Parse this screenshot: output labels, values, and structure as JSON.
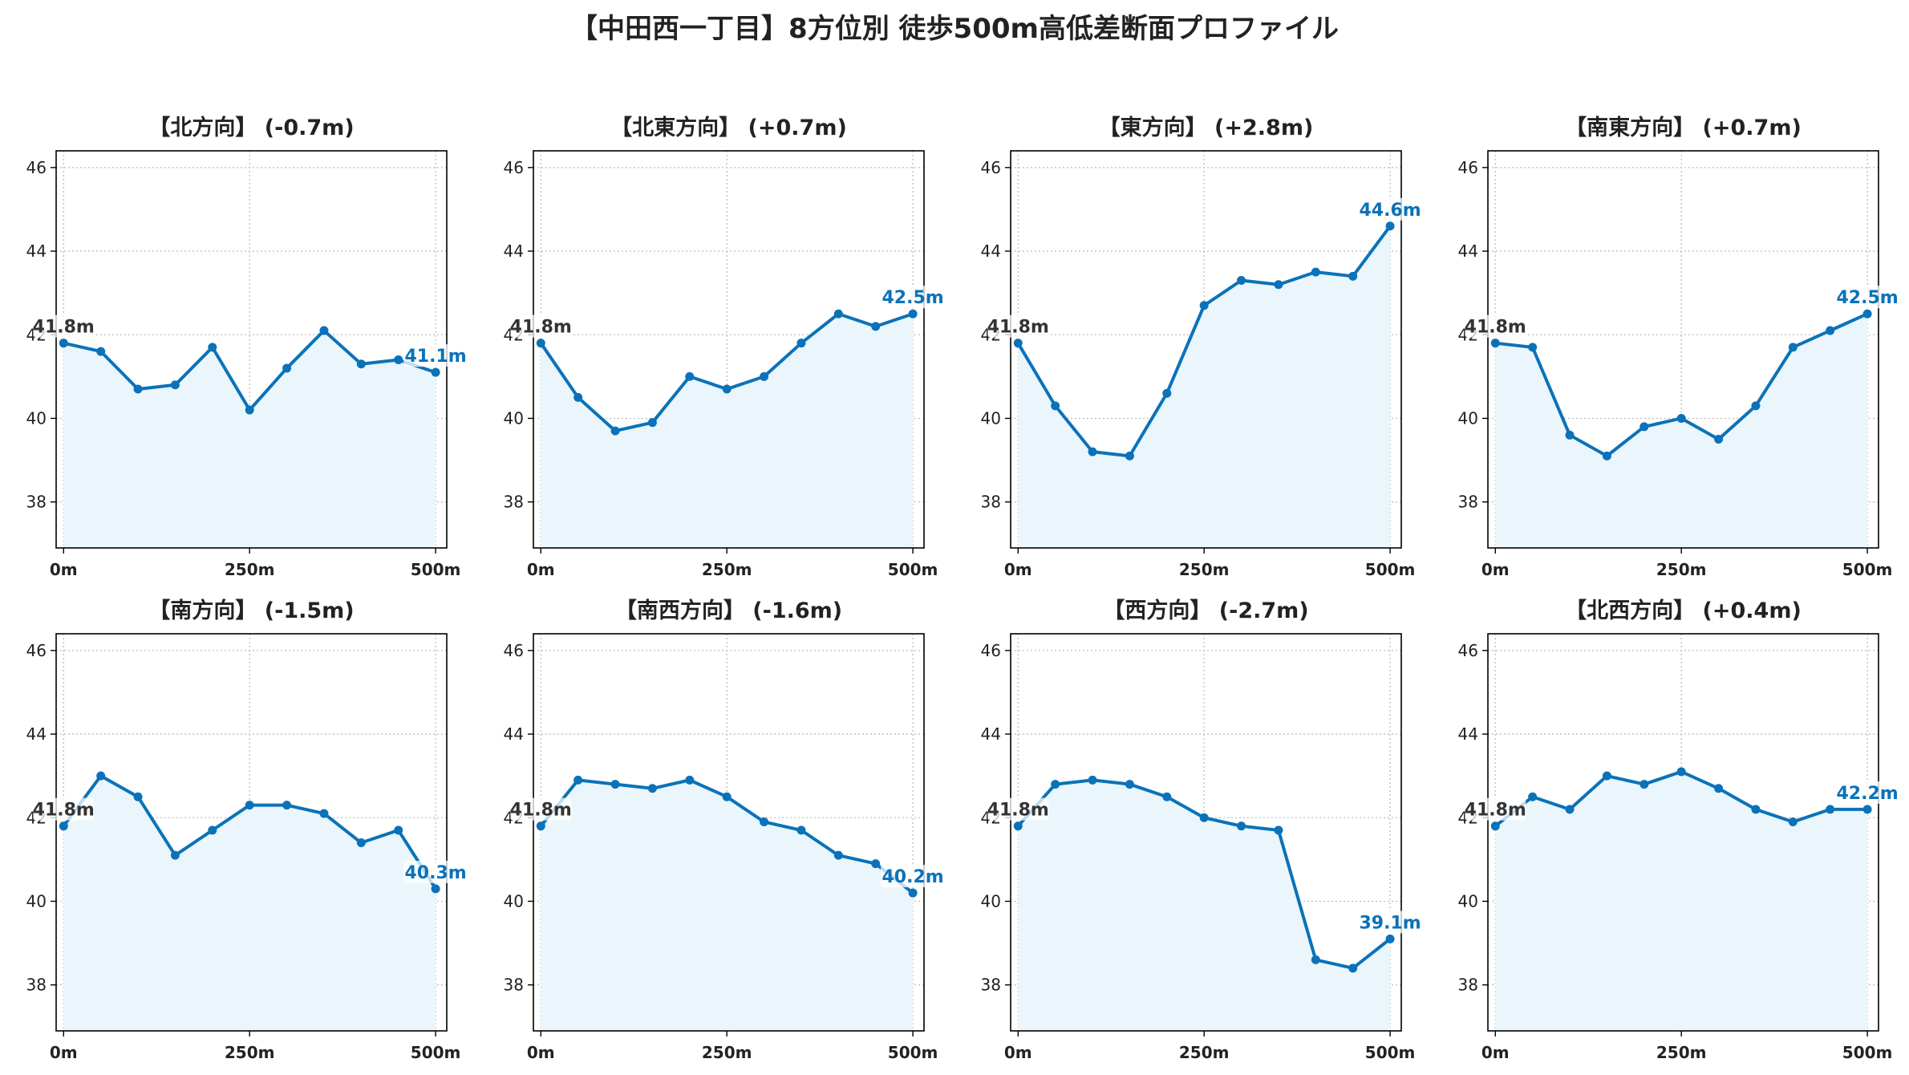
{
  "title": "【中田西一丁目】8方位別 徒歩500m高低差断面プロファイル",
  "style": {
    "line_color": "#0b72b9",
    "fill_color": "#eaf6fc",
    "start_label_color": "#333333",
    "end_label_color": "#0b72b9",
    "grid_color": "#bdbdbd"
  },
  "chart_data": [
    {
      "type": "line",
      "title": "【北方向】 (-0.7m)",
      "x": [
        0,
        50,
        100,
        150,
        200,
        250,
        300,
        350,
        400,
        450,
        500
      ],
      "values": [
        41.8,
        41.6,
        40.7,
        40.8,
        41.7,
        40.2,
        41.2,
        42.1,
        41.3,
        41.4,
        41.1
      ],
      "start_label": "41.8m",
      "end_label": "41.1m",
      "xticks": [
        "0m",
        "250m",
        "500m"
      ],
      "yticks": [
        38,
        40,
        42,
        44,
        46
      ],
      "ylim": [
        36.9,
        46.4
      ],
      "grid": true
    },
    {
      "type": "line",
      "title": "【北東方向】 (+0.7m)",
      "x": [
        0,
        50,
        100,
        150,
        200,
        250,
        300,
        350,
        400,
        450,
        500
      ],
      "values": [
        41.8,
        40.5,
        39.7,
        39.9,
        41.0,
        40.7,
        41.0,
        41.8,
        42.5,
        42.2,
        42.5
      ],
      "start_label": "41.8m",
      "end_label": "42.5m",
      "xticks": [
        "0m",
        "250m",
        "500m"
      ],
      "yticks": [
        38,
        40,
        42,
        44,
        46
      ],
      "ylim": [
        36.9,
        46.4
      ],
      "grid": true
    },
    {
      "type": "line",
      "title": "【東方向】 (+2.8m)",
      "x": [
        0,
        50,
        100,
        150,
        200,
        250,
        300,
        350,
        400,
        450,
        500
      ],
      "values": [
        41.8,
        40.3,
        39.2,
        39.1,
        40.6,
        42.7,
        43.3,
        43.2,
        43.5,
        43.4,
        44.6
      ],
      "start_label": "41.8m",
      "end_label": "44.6m",
      "xticks": [
        "0m",
        "250m",
        "500m"
      ],
      "yticks": [
        38,
        40,
        42,
        44,
        46
      ],
      "ylim": [
        36.9,
        46.4
      ],
      "grid": true
    },
    {
      "type": "line",
      "title": "【南東方向】 (+0.7m)",
      "x": [
        0,
        50,
        100,
        150,
        200,
        250,
        300,
        350,
        400,
        450,
        500
      ],
      "values": [
        41.8,
        41.7,
        39.6,
        39.1,
        39.8,
        40.0,
        39.5,
        40.3,
        41.7,
        42.1,
        42.5
      ],
      "start_label": "41.8m",
      "end_label": "42.5m",
      "xticks": [
        "0m",
        "250m",
        "500m"
      ],
      "yticks": [
        38,
        40,
        42,
        44,
        46
      ],
      "ylim": [
        36.9,
        46.4
      ],
      "grid": true
    },
    {
      "type": "line",
      "title": "【南方向】 (-1.5m)",
      "x": [
        0,
        50,
        100,
        150,
        200,
        250,
        300,
        350,
        400,
        450,
        500
      ],
      "values": [
        41.8,
        43.0,
        42.5,
        41.1,
        41.7,
        42.3,
        42.3,
        42.1,
        41.4,
        41.7,
        40.3
      ],
      "start_label": "41.8m",
      "end_label": "40.3m",
      "xticks": [
        "0m",
        "250m",
        "500m"
      ],
      "yticks": [
        38,
        40,
        42,
        44,
        46
      ],
      "ylim": [
        36.9,
        46.4
      ],
      "grid": true
    },
    {
      "type": "line",
      "title": "【南西方向】 (-1.6m)",
      "x": [
        0,
        50,
        100,
        150,
        200,
        250,
        300,
        350,
        400,
        450,
        500
      ],
      "values": [
        41.8,
        42.9,
        42.8,
        42.7,
        42.9,
        42.5,
        41.9,
        41.7,
        41.1,
        40.9,
        40.2
      ],
      "start_label": "41.8m",
      "end_label": "40.2m",
      "xticks": [
        "0m",
        "250m",
        "500m"
      ],
      "yticks": [
        38,
        40,
        42,
        44,
        46
      ],
      "ylim": [
        36.9,
        46.4
      ],
      "grid": true
    },
    {
      "type": "line",
      "title": "【西方向】 (-2.7m)",
      "x": [
        0,
        50,
        100,
        150,
        200,
        250,
        300,
        350,
        400,
        450,
        500
      ],
      "values": [
        41.8,
        42.8,
        42.9,
        42.8,
        42.5,
        42.0,
        41.8,
        41.7,
        38.6,
        38.4,
        39.1
      ],
      "start_label": "41.8m",
      "end_label": "39.1m",
      "xticks": [
        "0m",
        "250m",
        "500m"
      ],
      "yticks": [
        38,
        40,
        42,
        44,
        46
      ],
      "ylim": [
        36.9,
        46.4
      ],
      "grid": true
    },
    {
      "type": "line",
      "title": "【北西方向】 (+0.4m)",
      "x": [
        0,
        50,
        100,
        150,
        200,
        250,
        300,
        350,
        400,
        450,
        500
      ],
      "values": [
        41.8,
        42.5,
        42.2,
        43.0,
        42.8,
        43.1,
        42.7,
        42.2,
        41.9,
        42.2,
        42.2
      ],
      "start_label": "41.8m",
      "end_label": "42.2m",
      "xticks": [
        "0m",
        "250m",
        "500m"
      ],
      "yticks": [
        38,
        40,
        42,
        44,
        46
      ],
      "ylim": [
        36.9,
        46.4
      ],
      "grid": true
    }
  ]
}
